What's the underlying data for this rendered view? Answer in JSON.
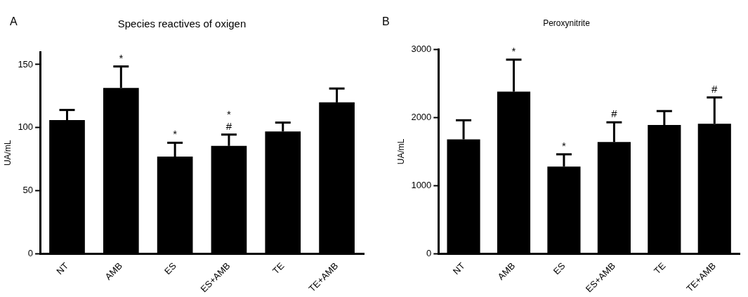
{
  "chart_data": [
    {
      "type": "bar",
      "title": "Species reactives of oxigen",
      "ylabel": "UA/mL",
      "categories": [
        "NT",
        "AMB",
        "ES",
        "ES+AMB",
        "TE",
        "TE+AMB"
      ],
      "values": [
        106,
        131.5,
        77,
        85.5,
        97,
        120
      ],
      "errors": [
        8,
        17,
        11,
        9,
        7,
        11
      ],
      "color": "#000000",
      "ylim": [
        0,
        160
      ],
      "yticks": [
        0,
        50,
        100,
        150
      ],
      "annotations": [
        "A",
        {
          "text": "*",
          "x": "AMB",
          "y": 148.5
        },
        {
          "text": "*",
          "x": "ES",
          "y": 88
        },
        {
          "text": "#",
          "x": "ES+AMB",
          "y": 94.5
        },
        {
          "text": "*",
          "x": "ES+AMB",
          "y": 94.5
        }
      ]
    },
    {
      "type": "bar",
      "title": "Peroxynitrite",
      "ylabel": "UA/mL",
      "categories": [
        "NT",
        "AMB",
        "ES",
        "ES+AMB",
        "TE",
        "TE+AMB"
      ],
      "values": [
        1680,
        2380,
        1280,
        1640,
        1890,
        1910
      ],
      "errors": [
        280,
        470,
        180,
        290,
        205,
        385
      ],
      "color": "#000000",
      "ylim": [
        0,
        3000
      ],
      "yticks": [
        0,
        1000,
        2000,
        3000
      ],
      "annotations": [
        "B",
        {
          "text": "*",
          "x": "AMB",
          "y": 2850
        },
        {
          "text": "*",
          "x": "ES",
          "y": 1460
        },
        {
          "text": "#",
          "x": "ES+AMB",
          "y": 1930
        },
        {
          "text": "#",
          "x": "TE+AMB",
          "y": 2295
        }
      ]
    }
  ]
}
